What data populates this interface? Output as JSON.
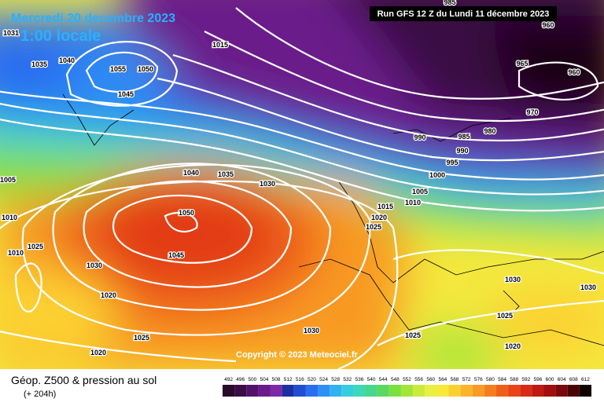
{
  "header": {
    "date": "Mercredi 20 decembre 2023",
    "time": "1:00 locale",
    "run": "Run GFS 12 Z du Lundi 11 décembre 2023"
  },
  "map": {
    "copyright": "Copyright © 2023 Meteociel.fr",
    "isobar_labels": [
      1031,
      1035,
      1040,
      1055,
      1050,
      1045,
      1015,
      985,
      960,
      965,
      960,
      970,
      980,
      985,
      990,
      990,
      995,
      1000,
      1005,
      1010,
      1015,
      1020,
      1025,
      1040,
      1035,
      1030,
      1050,
      1045,
      1005,
      1010,
      1010,
      1025,
      1030,
      1020,
      1025,
      1020,
      1030,
      1025,
      1030,
      1030,
      1025,
      1020
    ]
  },
  "footer": {
    "title": "Géop. Z500 & pression au sol",
    "lead": "(+ 204h)"
  },
  "scale": {
    "values": [
      492,
      496,
      500,
      504,
      508,
      512,
      516,
      520,
      524,
      528,
      532,
      536,
      540,
      544,
      548,
      552,
      556,
      560,
      564,
      568,
      572,
      576,
      580,
      584,
      588,
      592,
      596,
      600,
      604,
      608,
      612
    ],
    "colors": [
      "#2a0a2a",
      "#3a0d45",
      "#52106a",
      "#6a1a8a",
      "#7d28a8",
      "#1a2fa0",
      "#1f4ed0",
      "#2a6ef0",
      "#2e90f5",
      "#30b2f0",
      "#35cde0",
      "#3cd8b8",
      "#45d88a",
      "#5ad860",
      "#7ae040",
      "#a2e63a",
      "#c8ec3c",
      "#e8f040",
      "#f8e838",
      "#fcd030",
      "#fbb52a",
      "#f89a24",
      "#f47e1f",
      "#ee601a",
      "#e84417",
      "#d82a14",
      "#c01812",
      "#a00e10",
      "#7a080c",
      "#4a0408",
      "#100000"
    ]
  }
}
